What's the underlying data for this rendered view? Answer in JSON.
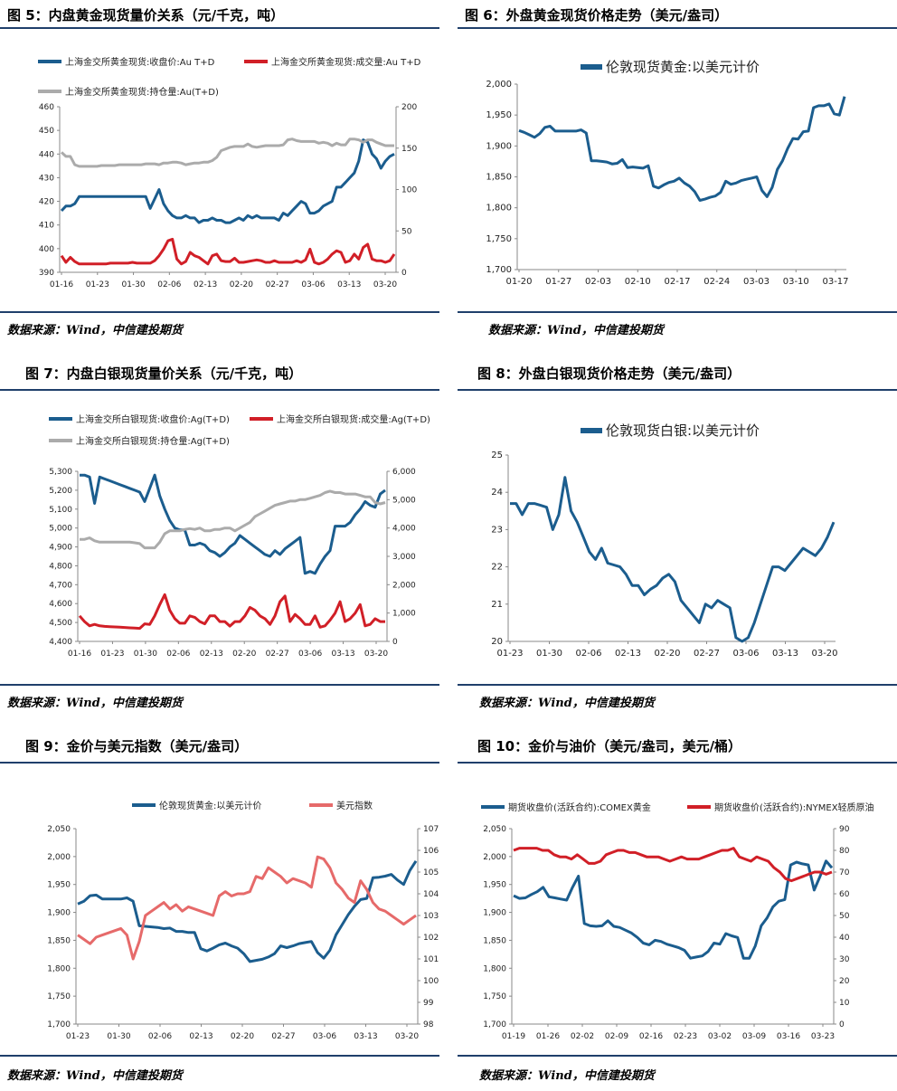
{
  "source_label": "数据来源：Wind，中信建投期货",
  "colors": {
    "blue": "#1b5d8e",
    "red": "#d11f27",
    "gray": "#ababab",
    "pink": "#e66a6a"
  },
  "chart_data": [
    {
      "id": "c5",
      "type": "line",
      "title": "图 5：内盘黄金现货量价关系（元/千克，吨）",
      "xlabels": [
        "01-16",
        "01-23",
        "01-30",
        "02-06",
        "02-13",
        "02-20",
        "02-27",
        "03-06",
        "03-13",
        "03-20"
      ],
      "ylim_left": [
        390,
        460
      ],
      "yticks_left": [
        390,
        400,
        410,
        420,
        430,
        440,
        450,
        460
      ],
      "ylim_right": [
        0,
        200
      ],
      "yticks_right": [
        0,
        50,
        100,
        150,
        200
      ],
      "series": [
        {
          "name": "上海金交所黄金现货:收盘价:Au T+D",
          "axis": "left",
          "color": "blue",
          "values": [
            416,
            418,
            418,
            419,
            422,
            422,
            422,
            422,
            422,
            422,
            422,
            422,
            422,
            422,
            422,
            422,
            422,
            422,
            422,
            422,
            417,
            421,
            425,
            419,
            416,
            414,
            413,
            413,
            414,
            413,
            413,
            411,
            412,
            412,
            413,
            412,
            412,
            411,
            411,
            412,
            413,
            412,
            414,
            413,
            414,
            413,
            413,
            413,
            413,
            412,
            415,
            414,
            416,
            418,
            420,
            419,
            415,
            415,
            416,
            418,
            419,
            420,
            426,
            426,
            428,
            430,
            432,
            437,
            446,
            445,
            440,
            438,
            434,
            437,
            439,
            440
          ]
        },
        {
          "name": "上海金交所黄金现货:成交量:Au T+D",
          "axis": "right",
          "color": "red",
          "values": [
            20,
            12,
            18,
            13,
            10,
            10,
            10,
            10,
            10,
            10,
            10,
            11,
            11,
            11,
            11,
            11,
            12,
            11,
            11,
            11,
            11,
            14,
            20,
            28,
            38,
            40,
            16,
            10,
            13,
            24,
            20,
            18,
            14,
            10,
            20,
            22,
            14,
            13,
            13,
            17,
            12,
            12,
            13,
            14,
            15,
            14,
            12,
            12,
            14,
            12,
            12,
            12,
            12,
            14,
            12,
            15,
            28,
            12,
            10,
            12,
            16,
            22,
            26,
            24,
            12,
            14,
            22,
            16,
            30,
            34,
            16,
            14,
            14,
            12,
            14,
            22
          ]
        },
        {
          "name": "上海金交所黄金现货:持仓量:Au(T+D)",
          "axis": "right",
          "color": "gray",
          "values": [
            145,
            140,
            140,
            130,
            128,
            128,
            128,
            128,
            128,
            129,
            129,
            129,
            129,
            130,
            130,
            130,
            130,
            130,
            130,
            131,
            131,
            131,
            130,
            132,
            132,
            133,
            133,
            132,
            130,
            131,
            132,
            132,
            133,
            133,
            135,
            139,
            147,
            149,
            151,
            152,
            152,
            152,
            155,
            152,
            151,
            152,
            153,
            153,
            153,
            153,
            154,
            160,
            161,
            159,
            158,
            158,
            158,
            158,
            156,
            157,
            156,
            153,
            156,
            154,
            154,
            161,
            161,
            160,
            157,
            160,
            160,
            157,
            155,
            153,
            153,
            153
          ]
        }
      ]
    },
    {
      "id": "c6",
      "type": "line",
      "title": "图 6：外盘黄金现货价格走势（美元/盎司）",
      "xlabels": [
        "01-20",
        "01-27",
        "02-03",
        "02-10",
        "02-17",
        "02-24",
        "03-03",
        "03-10",
        "03-17"
      ],
      "ylim_left": [
        1700,
        2000
      ],
      "yticks_left": [
        1700,
        1750,
        1800,
        1850,
        1900,
        1950,
        2000
      ],
      "series": [
        {
          "name": "伦敦现货黄金:以美元计价",
          "axis": "left",
          "color": "blue",
          "values": [
            1925,
            1922,
            1918,
            1914,
            1920,
            1930,
            1932,
            1924,
            1924,
            1924,
            1924,
            1924,
            1926,
            1921,
            1876,
            1876,
            1875,
            1874,
            1871,
            1872,
            1878,
            1865,
            1866,
            1865,
            1864,
            1868,
            1835,
            1832,
            1837,
            1841,
            1843,
            1848,
            1840,
            1835,
            1826,
            1812,
            1814,
            1817,
            1819,
            1825,
            1843,
            1838,
            1840,
            1844,
            1846,
            1848,
            1850,
            1828,
            1818,
            1833,
            1862,
            1876,
            1896,
            1912,
            1911,
            1923,
            1924,
            1962,
            1965,
            1965,
            1968,
            1952,
            1950,
            1980
          ]
        }
      ]
    },
    {
      "id": "c7",
      "type": "line",
      "title": "图 7：内盘白银现货量价关系（元/千克，吨）",
      "xlabels": [
        "01-16",
        "01-23",
        "01-30",
        "02-06",
        "02-13",
        "02-20",
        "02-27",
        "03-06",
        "03-13",
        "03-20"
      ],
      "ylim_left": [
        4400,
        5300
      ],
      "yticks_left": [
        4400,
        4500,
        4600,
        4700,
        4800,
        4900,
        5000,
        5100,
        5200,
        5300
      ],
      "ylim_right": [
        0,
        6000
      ],
      "yticks_right": [
        0,
        1000,
        2000,
        3000,
        4000,
        5000,
        6000
      ],
      "series": [
        {
          "name": "上海金交所白银现货:收盘价:Ag(T+D)",
          "axis": "left",
          "color": "blue",
          "values": [
            5280,
            5280,
            5270,
            5130,
            5270,
            5260,
            5250,
            5240,
            5230,
            5220,
            5210,
            5200,
            5190,
            5140,
            5210,
            5280,
            5170,
            5100,
            5040,
            5000,
            4990,
            4990,
            4910,
            4910,
            4920,
            4910,
            4880,
            4870,
            4850,
            4870,
            4900,
            4920,
            4960,
            4940,
            4920,
            4900,
            4880,
            4860,
            4850,
            4880,
            4860,
            4890,
            4910,
            4930,
            4950,
            4760,
            4770,
            4760,
            4810,
            4850,
            4880,
            5010,
            5010,
            5010,
            5030,
            5070,
            5100,
            5140,
            5120,
            5110,
            5180,
            5200
          ]
        },
        {
          "name": "上海金交所白银现货:成交量:Ag(T+D)",
          "axis": "right",
          "color": "red",
          "values": [
            900,
            700,
            550,
            600,
            550,
            530,
            520,
            510,
            500,
            490,
            480,
            470,
            460,
            620,
            600,
            900,
            1300,
            1650,
            1100,
            800,
            640,
            640,
            900,
            850,
            700,
            620,
            900,
            900,
            700,
            700,
            540,
            700,
            700,
            900,
            1200,
            1100,
            900,
            800,
            600,
            900,
            1400,
            1600,
            700,
            950,
            800,
            600,
            600,
            900,
            500,
            550,
            750,
            1000,
            1400,
            700,
            800,
            1000,
            1300,
            550,
            600,
            800,
            700,
            700
          ]
        },
        {
          "name": "上海金交所白银现货:持仓量:Ag(T+D)",
          "axis": "right",
          "color": "gray",
          "values": [
            3600,
            3600,
            3650,
            3550,
            3500,
            3500,
            3500,
            3500,
            3500,
            3500,
            3500,
            3480,
            3450,
            3300,
            3300,
            3300,
            3500,
            3800,
            3900,
            3900,
            3900,
            3950,
            3980,
            3950,
            4000,
            3900,
            3900,
            3950,
            3950,
            4000,
            4000,
            3900,
            4000,
            4100,
            4200,
            4400,
            4500,
            4600,
            4700,
            4800,
            4850,
            4900,
            4950,
            4950,
            5000,
            5000,
            5050,
            5100,
            5150,
            5250,
            5300,
            5250,
            5250,
            5200,
            5200,
            5200,
            5150,
            5100,
            5100,
            4900,
            4850,
            4900
          ]
        }
      ]
    },
    {
      "id": "c8",
      "type": "line",
      "title": "图 8：外盘白银现货价格走势（美元/盎司）",
      "xlabels": [
        "01-23",
        "01-30",
        "02-06",
        "02-13",
        "02-20",
        "02-27",
        "03-06",
        "03-13",
        "03-20"
      ],
      "ylim_left": [
        20,
        25
      ],
      "yticks_left": [
        20,
        21,
        22,
        23,
        24,
        25
      ],
      "series": [
        {
          "name": "伦敦现货白银:以美元计价",
          "axis": "left",
          "color": "blue",
          "values": [
            23.7,
            23.7,
            23.4,
            23.7,
            23.7,
            23.65,
            23.6,
            23.0,
            23.4,
            24.4,
            23.5,
            23.2,
            22.8,
            22.4,
            22.2,
            22.5,
            22.1,
            22.05,
            22.0,
            21.8,
            21.5,
            21.5,
            21.25,
            21.4,
            21.5,
            21.7,
            21.8,
            21.6,
            21.1,
            20.9,
            20.7,
            20.5,
            21.0,
            20.9,
            21.1,
            21.0,
            20.9,
            20.1,
            20.0,
            20.1,
            20.5,
            21.0,
            21.5,
            22.0,
            22.0,
            21.9,
            22.1,
            22.3,
            22.5,
            22.4,
            22.3,
            22.5,
            22.8,
            23.2
          ]
        }
      ]
    },
    {
      "id": "c9",
      "type": "line",
      "title": "图 9：金价与美元指数（美元/盎司）",
      "xlabels": [
        "01-23",
        "01-30",
        "02-06",
        "02-13",
        "02-20",
        "02-27",
        "03-06",
        "03-13",
        "03-20"
      ],
      "ylim_left": [
        1700,
        2050
      ],
      "yticks_left": [
        1700,
        1750,
        1800,
        1850,
        1900,
        1950,
        2000,
        2050
      ],
      "ylim_right": [
        98,
        107
      ],
      "yticks_right": [
        98,
        99,
        100,
        101,
        102,
        103,
        104,
        105,
        106,
        107
      ],
      "series": [
        {
          "name": "伦敦现货黄金:以美元计价",
          "axis": "left",
          "color": "blue",
          "values": [
            1915,
            1920,
            1930,
            1931,
            1924,
            1924,
            1924,
            1924,
            1926,
            1920,
            1876,
            1875,
            1874,
            1873,
            1871,
            1872,
            1866,
            1866,
            1864,
            1864,
            1835,
            1831,
            1836,
            1842,
            1845,
            1840,
            1836,
            1826,
            1812,
            1814,
            1816,
            1820,
            1826,
            1840,
            1837,
            1840,
            1844,
            1846,
            1848,
            1828,
            1818,
            1832,
            1860,
            1878,
            1896,
            1911,
            1923,
            1925,
            1962,
            1963,
            1965,
            1968,
            1958,
            1950,
            1975,
            1992
          ]
        },
        {
          "name": "美元指数",
          "axis": "right",
          "color": "pink",
          "values": [
            102.1,
            101.9,
            101.7,
            102.0,
            102.1,
            102.2,
            102.3,
            102.4,
            102.1,
            101.0,
            101.8,
            103.0,
            103.2,
            103.4,
            103.6,
            103.3,
            103.5,
            103.2,
            103.4,
            103.3,
            103.2,
            103.1,
            103.0,
            103.9,
            104.1,
            103.9,
            104.0,
            104.0,
            104.1,
            104.8,
            104.7,
            105.2,
            105.0,
            104.8,
            104.5,
            104.7,
            104.6,
            104.5,
            104.3,
            105.7,
            105.6,
            105.2,
            104.5,
            104.2,
            103.8,
            103.6,
            104.6,
            104.2,
            103.6,
            103.3,
            103.2,
            103.0,
            102.8,
            102.6,
            102.8,
            103.0
          ]
        }
      ]
    },
    {
      "id": "c10",
      "type": "line",
      "title": "图 10：金价与油价（美元/盎司，美元/桶）",
      "xlabels": [
        "01-19",
        "01-26",
        "02-02",
        "02-09",
        "02-16",
        "02-23",
        "03-02",
        "03-09",
        "03-16",
        "03-23"
      ],
      "ylim_left": [
        1700,
        2050
      ],
      "yticks_left": [
        1700,
        1750,
        1800,
        1850,
        1900,
        1950,
        2000,
        2050
      ],
      "ylim_right": [
        0,
        90
      ],
      "yticks_right": [
        0,
        10,
        20,
        30,
        40,
        50,
        60,
        70,
        80,
        90
      ],
      "series": [
        {
          "name": "期货收盘价(活跃合约):COMEX黄金",
          "axis": "left",
          "color": "blue",
          "values": [
            1930,
            1925,
            1926,
            1932,
            1937,
            1945,
            1928,
            1926,
            1924,
            1922,
            1945,
            1965,
            1880,
            1876,
            1875,
            1876,
            1885,
            1875,
            1873,
            1868,
            1863,
            1855,
            1845,
            1842,
            1850,
            1848,
            1843,
            1840,
            1837,
            1832,
            1818,
            1820,
            1822,
            1830,
            1845,
            1843,
            1862,
            1858,
            1855,
            1818,
            1818,
            1840,
            1876,
            1890,
            1910,
            1920,
            1923,
            1985,
            1990,
            1987,
            1985,
            1940,
            1965,
            1992,
            1980
          ]
        },
        {
          "name": "期货收盘价(活跃合约):NYMEX轻质原油",
          "axis": "right",
          "color": "red",
          "values": [
            80,
            81,
            81,
            81,
            81,
            80,
            80,
            78,
            77,
            77,
            76,
            78,
            76,
            74,
            74,
            75,
            78,
            79,
            80,
            80,
            79,
            79,
            78,
            77,
            77,
            77,
            76,
            75,
            76,
            77,
            76,
            76,
            76,
            77,
            78,
            79,
            80,
            80,
            81,
            77,
            76,
            75,
            77,
            76,
            75,
            72,
            70,
            67,
            66,
            67,
            68,
            69,
            70,
            70,
            69,
            70
          ]
        }
      ]
    }
  ]
}
